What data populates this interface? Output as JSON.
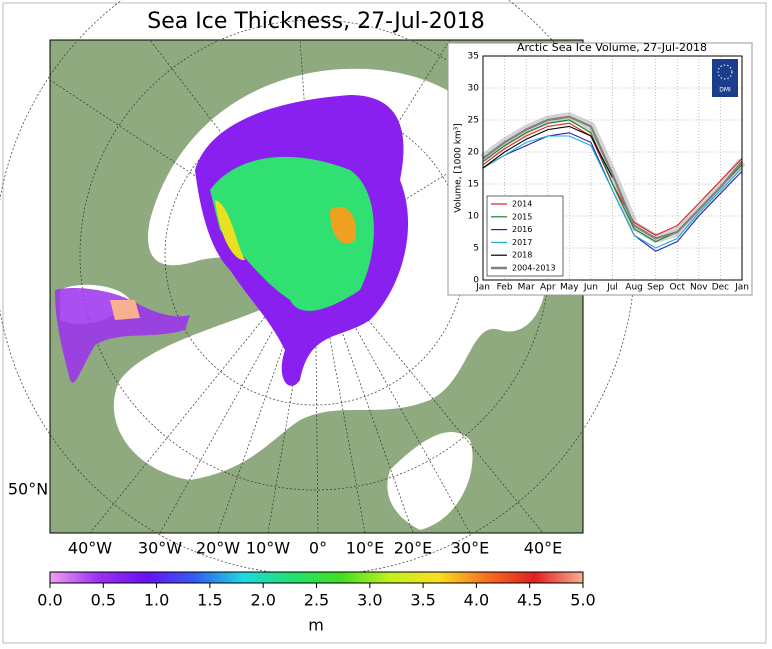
{
  "map": {
    "title": "Sea Ice Thickness, 27-Jul-2018",
    "lon_labels": [
      "40°W",
      "30°W",
      "20°W",
      "10°W",
      "0°",
      "10°E",
      "20°E",
      "30°E",
      "40°E"
    ],
    "lat_label": "50°N",
    "colorbar": {
      "ticks": [
        {
          "value": 0,
          "label": "0.0"
        },
        {
          "value": 0.5,
          "label": "0.5"
        },
        {
          "value": 1,
          "label": "1.0"
        },
        {
          "value": 1.5,
          "label": "1.5"
        },
        {
          "value": 2,
          "label": "2.0"
        },
        {
          "value": 2.5,
          "label": "2.5"
        },
        {
          "value": 3,
          "label": "3.0"
        },
        {
          "value": 3.5,
          "label": "3.5"
        },
        {
          "value": 4,
          "label": "4.0"
        },
        {
          "value": 4.5,
          "label": "4.5"
        },
        {
          "value": 5,
          "label": "5.0"
        }
      ],
      "lim": [
        0,
        5
      ],
      "colors": [
        "#f0a0f0",
        "#9b30f0",
        "#6a10f5",
        "#3060f0",
        "#20d8e0",
        "#20e070",
        "#40e020",
        "#c0f020",
        "#f8e020",
        "#f87020",
        "#e02020",
        "#f8b090"
      ],
      "unit": "m"
    }
  },
  "chart_data": {
    "type": "line",
    "title": "Arctic Sea Ice Volume, 27-Jul-2018",
    "ylabel": "Volume, [1000 km³]",
    "logo_text": "DMI",
    "categories": [
      "Jan",
      "Feb",
      "Mar",
      "Apr",
      "May",
      "Jun",
      "Jul",
      "Aug",
      "Sep",
      "Oct",
      "Nov",
      "Dec",
      "Jan"
    ],
    "ylim": [
      0,
      35
    ],
    "yticks": [
      0,
      5,
      10,
      15,
      20,
      25,
      30,
      35
    ],
    "grid": true,
    "legend": "lower left",
    "series": [
      {
        "name": "2014",
        "color": "#e02020",
        "values": [
          18,
          20.5,
          22.5,
          24,
          24.5,
          22.5,
          15,
          9,
          7,
          8.5,
          12,
          15.5,
          19
        ]
      },
      {
        "name": "2015",
        "color": "#208020",
        "values": [
          18.5,
          21,
          23,
          24.5,
          25,
          23,
          15,
          8,
          6,
          7.5,
          11,
          14.5,
          18
        ]
      },
      {
        "name": "2016",
        "color": "#2020c0",
        "values": [
          17.5,
          19.5,
          21,
          22.5,
          23,
          21.5,
          14,
          7,
          4.5,
          6,
          10,
          13.5,
          17
        ]
      },
      {
        "name": "2017",
        "color": "#20b0d0",
        "values": [
          17.5,
          19.5,
          21.5,
          22.5,
          22.5,
          21,
          14,
          7,
          5,
          6.5,
          10.5,
          14,
          17.5
        ]
      },
      {
        "name": "2018",
        "color": "#000000",
        "values": [
          17.5,
          20,
          22,
          23.5,
          24,
          22.5,
          16,
          null,
          null,
          null,
          null,
          null,
          null
        ]
      },
      {
        "name": "2004-2013",
        "color": "#808080",
        "values": [
          19,
          21.5,
          23.5,
          25,
          25.5,
          24,
          16.5,
          8.5,
          6.5,
          7.5,
          11,
          14.5,
          18.5
        ]
      }
    ]
  }
}
